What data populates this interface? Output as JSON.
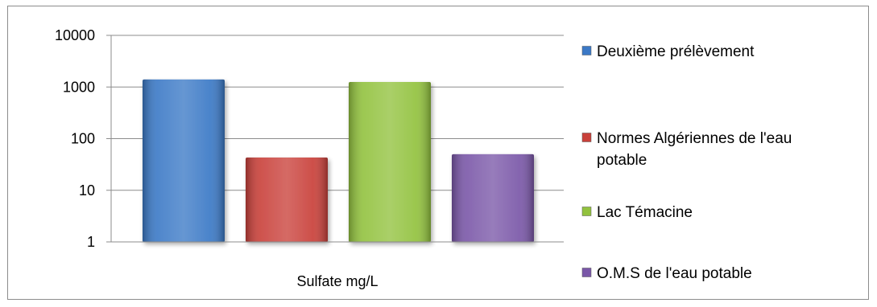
{
  "chart_data": {
    "type": "bar",
    "yscale": "log",
    "categories": [
      "Sulfate mg/L"
    ],
    "series": [
      {
        "name": "Deuxième prélèvement",
        "values": [
          1400
        ],
        "color": "#3b79c6"
      },
      {
        "name": "Normes Algériennes de l'eau potable",
        "values": [
          43
        ],
        "color": "#c9403a"
      },
      {
        "name": "Lac Témacine",
        "values": [
          1250
        ],
        "color": "#92c23e"
      },
      {
        "name": "O.M.S de l'eau potable",
        "values": [
          50
        ],
        "color": "#7a57a8"
      }
    ],
    "yticks": [
      "1",
      "10",
      "100",
      "1000",
      "10000"
    ],
    "ylim": [
      1,
      10000
    ],
    "grid": true,
    "legend_position": "right"
  }
}
